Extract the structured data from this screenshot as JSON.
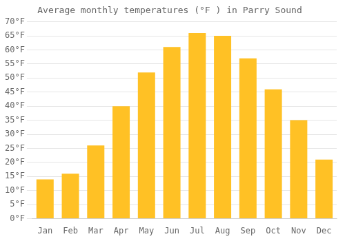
{
  "chart_data": {
    "type": "bar",
    "title": "Average monthly temperatures (°F ) in Parry Sound",
    "categories": [
      "Jan",
      "Feb",
      "Mar",
      "Apr",
      "May",
      "Jun",
      "Jul",
      "Aug",
      "Sep",
      "Oct",
      "Nov",
      "Dec"
    ],
    "values": [
      14,
      16,
      26,
      40,
      52,
      61,
      66,
      65,
      57,
      46,
      35,
      21
    ],
    "color": "#FFC125",
    "ylim": [
      0,
      70
    ],
    "yticks": [
      {
        "value": 0,
        "label": "0°F"
      },
      {
        "value": 5,
        "label": "5°F"
      },
      {
        "value": 10,
        "label": "10°F"
      },
      {
        "value": 15,
        "label": "15°F"
      },
      {
        "value": 20,
        "label": "20°F"
      },
      {
        "value": 25,
        "label": "25°F"
      },
      {
        "value": 30,
        "label": "30°F"
      },
      {
        "value": 35,
        "label": "35°F"
      },
      {
        "value": 40,
        "label": "40°F"
      },
      {
        "value": 45,
        "label": "45°F"
      },
      {
        "value": 50,
        "label": "50°F"
      },
      {
        "value": 55,
        "label": "55°F"
      },
      {
        "value": 60,
        "label": "60°F"
      },
      {
        "value": 65,
        "label": "65°F"
      },
      {
        "value": 70,
        "label": "70°F"
      }
    ],
    "grid": true
  }
}
